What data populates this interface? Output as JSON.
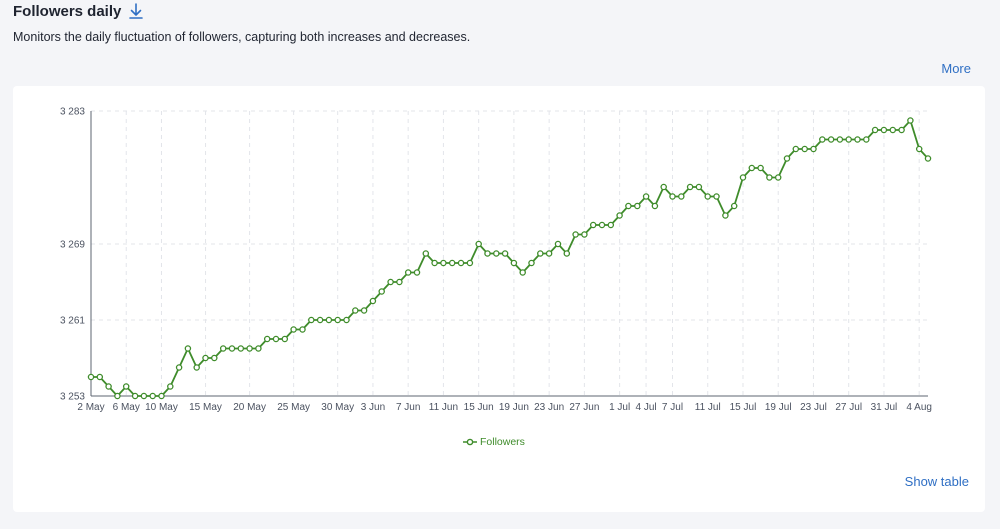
{
  "header": {
    "title": "Followers daily",
    "download_icon": "download-arrow-icon"
  },
  "subtitle": "Monitors the daily fluctuation of followers, capturing both increases and decreases.",
  "more_label": "More",
  "show_table_label": "Show table",
  "colors": {
    "series": "#3f8c2b",
    "link": "#2f6fc4"
  },
  "chart_data": {
    "type": "line",
    "title": "",
    "xlabel": "",
    "ylabel": "",
    "ylim": [
      3253,
      3283
    ],
    "y_ticks": [
      {
        "value": 3253,
        "label": "3 253"
      },
      {
        "value": 3261,
        "label": "3 261"
      },
      {
        "value": 3269,
        "label": "3 269"
      },
      {
        "value": 3283,
        "label": "3 283"
      }
    ],
    "x_ticks": [
      {
        "index": 0,
        "label": "2 May"
      },
      {
        "index": 4,
        "label": "6 May"
      },
      {
        "index": 8,
        "label": "10 May"
      },
      {
        "index": 13,
        "label": "15 May"
      },
      {
        "index": 18,
        "label": "20 May"
      },
      {
        "index": 23,
        "label": "25 May"
      },
      {
        "index": 28,
        "label": "30 May"
      },
      {
        "index": 32,
        "label": "3 Jun"
      },
      {
        "index": 36,
        "label": "7 Jun"
      },
      {
        "index": 40,
        "label": "11 Jun"
      },
      {
        "index": 44,
        "label": "15 Jun"
      },
      {
        "index": 48,
        "label": "19 Jun"
      },
      {
        "index": 52,
        "label": "23 Jun"
      },
      {
        "index": 56,
        "label": "27 Jun"
      },
      {
        "index": 60,
        "label": "1 Jul"
      },
      {
        "index": 63,
        "label": "4 Jul"
      },
      {
        "index": 66,
        "label": "7 Jul"
      },
      {
        "index": 70,
        "label": "11 Jul"
      },
      {
        "index": 74,
        "label": "15 Jul"
      },
      {
        "index": 78,
        "label": "19 Jul"
      },
      {
        "index": 82,
        "label": "23 Jul"
      },
      {
        "index": 86,
        "label": "27 Jul"
      },
      {
        "index": 90,
        "label": "31 Jul"
      },
      {
        "index": 94,
        "label": "4 Aug"
      }
    ],
    "grid": true,
    "legend": "bottom-center",
    "series": [
      {
        "name": "Followers",
        "values": [
          3255,
          3255,
          3254,
          3253,
          3254,
          3253,
          3253,
          3253,
          3253,
          3254,
          3256,
          3258,
          3256,
          3257,
          3257,
          3258,
          3258,
          3258,
          3258,
          3258,
          3259,
          3259,
          3259,
          3260,
          3260,
          3261,
          3261,
          3261,
          3261,
          3261,
          3262,
          3262,
          3263,
          3264,
          3265,
          3265,
          3266,
          3266,
          3268,
          3267,
          3267,
          3267,
          3267,
          3267,
          3269,
          3268,
          3268,
          3268,
          3267,
          3266,
          3267,
          3268,
          3268,
          3269,
          3268,
          3270,
          3270,
          3271,
          3271,
          3271,
          3272,
          3273,
          3273,
          3274,
          3273,
          3275,
          3274,
          3274,
          3275,
          3275,
          3274,
          3274,
          3272,
          3273,
          3276,
          3277,
          3277,
          3276,
          3276,
          3278,
          3279,
          3279,
          3279,
          3280,
          3280,
          3280,
          3280,
          3280,
          3280,
          3281,
          3281,
          3281,
          3281,
          3282,
          3279,
          3278
        ]
      }
    ]
  }
}
